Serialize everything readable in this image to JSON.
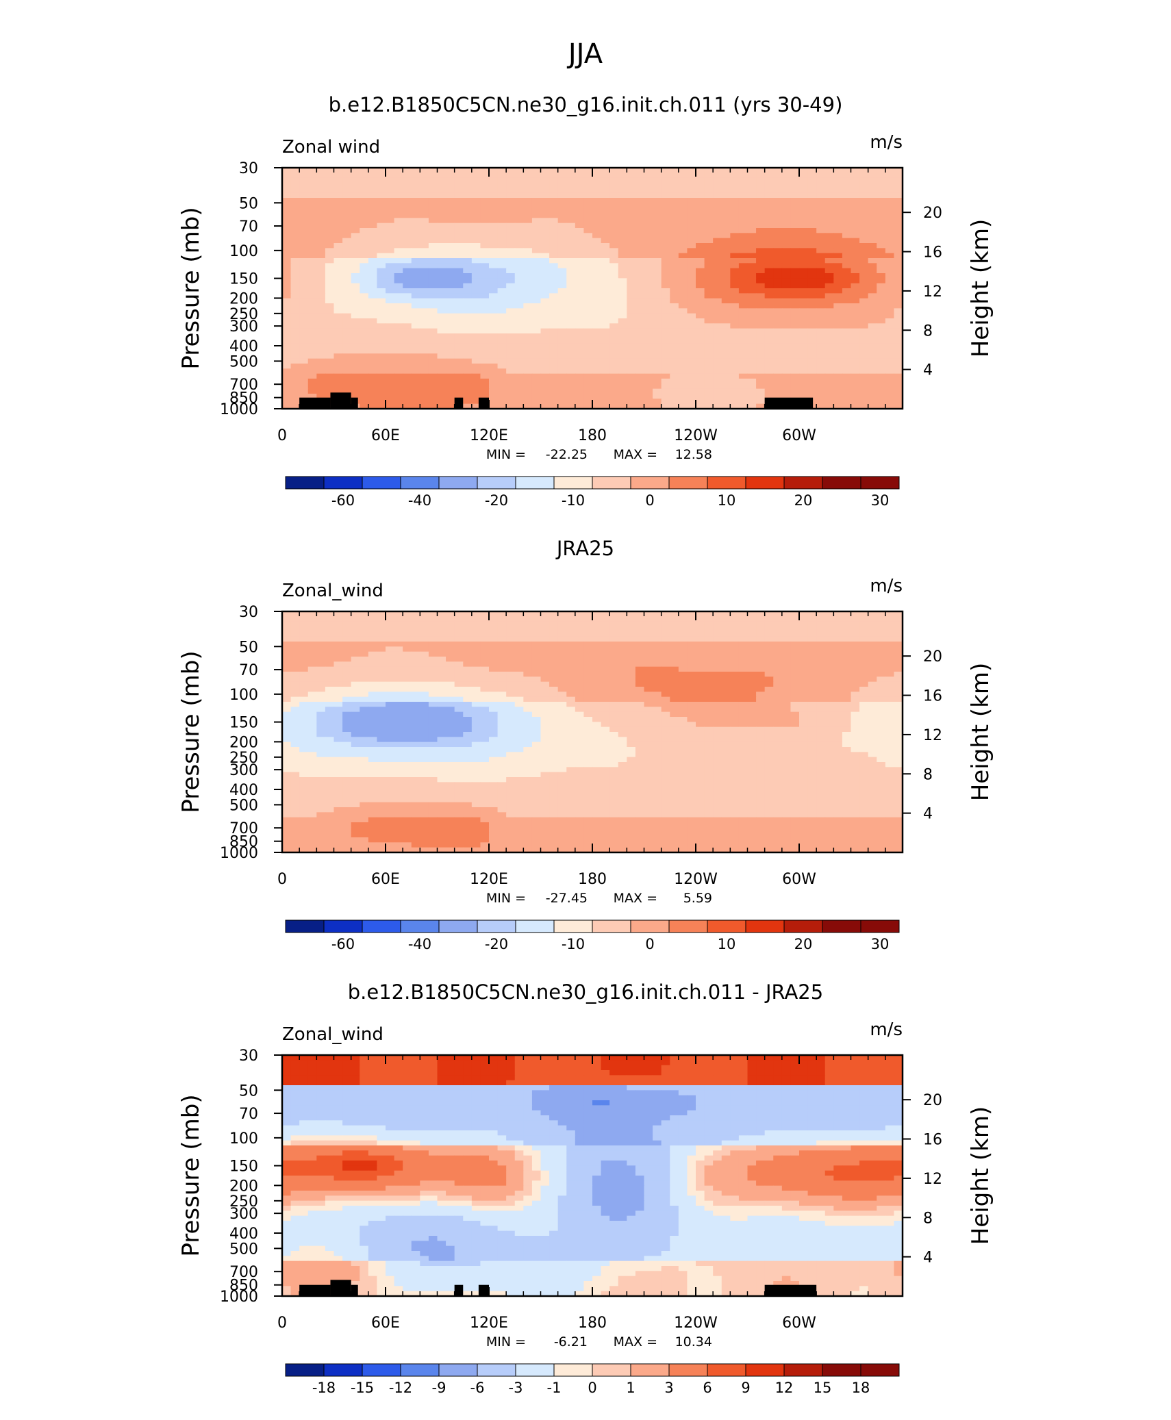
{
  "figure_title": "JJA",
  "colors": {
    "blues": [
      "#071f86",
      "#0d2fc4",
      "#2d5bea",
      "#5a85ec",
      "#8ea9f0",
      "#b7cdfa",
      "#d6e9fd"
    ],
    "reds": [
      "#feebd8",
      "#fdcbb5",
      "#fba98a",
      "#f68258",
      "#f05a2c",
      "#e2350f",
      "#b51d0a",
      "#870b08"
    ],
    "topography": "#000000"
  },
  "chart_data": [
    {
      "type": "heatmap",
      "title": "b.e12.B1850C5CN.ne30_g16.init.ch.011 (yrs 30-49)",
      "left_label": "Zonal wind",
      "right_label": "m/s",
      "ylabel": "Pressure (mb)",
      "y2label": "Height (km)",
      "x_ticks": [
        "0",
        "60E",
        "120E",
        "180",
        "120W",
        "60W"
      ],
      "y_ticks": [
        "30",
        "50",
        "70",
        "100",
        "150",
        "200",
        "250",
        "300",
        "400",
        "500",
        "700",
        "850",
        "1000"
      ],
      "y2_ticks": [
        "4",
        "8",
        "12",
        "16",
        "20"
      ],
      "min_label": "MIN =",
      "min_value": "-22.25",
      "max_label": "MAX =",
      "max_value": "12.58",
      "colorbar_labels": [
        "-60",
        "-40",
        "-20",
        "-10",
        "0",
        "10",
        "20",
        "30"
      ],
      "features": [
        {
          "lon": 90,
          "p": 150,
          "dlon": 65,
          "dz": 2.8,
          "amp": -13
        },
        {
          "lon": 80,
          "p": 150,
          "dlon": 22,
          "dz": 1.2,
          "amp": -10
        },
        {
          "lon": 290,
          "p": 150,
          "dlon": 55,
          "dz": 3.0,
          "amp": 14
        },
        {
          "lon": 300,
          "p": 150,
          "dlon": 25,
          "dz": 1.3,
          "amp": 9
        },
        {
          "lon": 30,
          "p": 150,
          "dlon": 35,
          "dz": 2.2,
          "amp": 3
        },
        {
          "lon": 180,
          "p": 200,
          "dlon": 80,
          "dz": 5.0,
          "amp": -3
        },
        {
          "lon": 70,
          "p": 700,
          "dlon": 45,
          "dz": 2.2,
          "amp": 8
        },
        {
          "lon": 250,
          "p": 850,
          "dlon": 20,
          "dz": 1.2,
          "amp": -4
        }
      ],
      "background": {
        "top": -2,
        "strato": 2,
        "mid": -2,
        "low": 1
      },
      "topography": [
        [
          10,
          28,
          850
        ],
        [
          28,
          40,
          790
        ],
        [
          40,
          44,
          850
        ],
        [
          100,
          105,
          850
        ],
        [
          114,
          120,
          850
        ],
        [
          280,
          308,
          850
        ]
      ],
      "palette": "main",
      "cb_type": "main"
    },
    {
      "type": "heatmap",
      "title": "JRA25",
      "left_label": "Zonal_wind",
      "right_label": "m/s",
      "ylabel": "Pressure (mb)",
      "y2label": "Height (km)",
      "x_ticks": [
        "0",
        "60E",
        "120E",
        "180",
        "120W",
        "60W"
      ],
      "y_ticks": [
        "30",
        "50",
        "70",
        "100",
        "150",
        "200",
        "250",
        "300",
        "400",
        "500",
        "700",
        "850",
        "1000"
      ],
      "y2_ticks": [
        "4",
        "8",
        "12",
        "16",
        "20"
      ],
      "min_label": "MIN =",
      "min_value": "-27.45",
      "max_label": "MAX =",
      "max_value": "5.59",
      "colorbar_labels": [
        "-60",
        "-40",
        "-20",
        "-10",
        "0",
        "10",
        "20",
        "30"
      ],
      "features": [
        {
          "lon": 75,
          "p": 150,
          "dlon": 70,
          "dz": 3.2,
          "amp": -16
        },
        {
          "lon": 70,
          "p": 150,
          "dlon": 25,
          "dz": 1.4,
          "amp": -12
        },
        {
          "lon": 230,
          "p": 100,
          "dlon": 80,
          "dz": 3.5,
          "amp": 6
        },
        {
          "lon": 295,
          "p": 150,
          "dlon": 18,
          "dz": 1.0,
          "amp": 3
        },
        {
          "lon": 80,
          "p": 700,
          "dlon": 45,
          "dz": 2.5,
          "amp": 6
        },
        {
          "lon": 180,
          "p": 200,
          "dlon": 100,
          "dz": 5.0,
          "amp": -2
        }
      ],
      "background": {
        "top": -3,
        "strato": 1.5,
        "mid": -2,
        "low": 1
      },
      "topography": [],
      "palette": "main",
      "cb_type": "main"
    },
    {
      "type": "heatmap",
      "title": "b.e12.B1850C5CN.ne30_g16.init.ch.011 - JRA25",
      "left_label": "Zonal_wind",
      "right_label": "m/s",
      "ylabel": "Pressure (mb)",
      "y2label": "Height (km)",
      "x_ticks": [
        "0",
        "60E",
        "120E",
        "180",
        "120W",
        "60W"
      ],
      "y_ticks": [
        "30",
        "50",
        "70",
        "100",
        "150",
        "200",
        "250",
        "300",
        "400",
        "500",
        "700",
        "850",
        "1000"
      ],
      "y2_ticks": [
        "4",
        "8",
        "12",
        "16",
        "20"
      ],
      "min_label": "MIN =",
      "min_value": "-6.21",
      "max_label": "MAX =",
      "max_value": "10.34",
      "colorbar_labels": [
        "-18",
        "-15",
        "-12",
        "-9",
        "-6",
        "-3",
        "-1",
        "0",
        "1",
        "3",
        "6",
        "9",
        "12",
        "15",
        "18"
      ],
      "features": [
        {
          "lon": 45,
          "p": 150,
          "dlon": 45,
          "dz": 2.3,
          "amp": 7
        },
        {
          "lon": 45,
          "p": 150,
          "dlon": 15,
          "dz": 0.9,
          "amp": 4
        },
        {
          "lon": 310,
          "p": 170,
          "dlon": 50,
          "dz": 2.5,
          "amp": 7
        },
        {
          "lon": 120,
          "p": 180,
          "dlon": 20,
          "dz": 2.5,
          "amp": 5
        },
        {
          "lon": 190,
          "p": 60,
          "dlon": 30,
          "dz": 1.2,
          "amp": -4
        },
        {
          "lon": 195,
          "p": 200,
          "dlon": 25,
          "dz": 4.5,
          "amp": -5
        },
        {
          "lon": 80,
          "p": 450,
          "dlon": 30,
          "dz": 2.5,
          "amp": -4
        },
        {
          "lon": 130,
          "p": 700,
          "dlon": 35,
          "dz": 2.0,
          "amp": -3
        },
        {
          "lon": 30,
          "p": 600,
          "dlon": 25,
          "dz": 2.0,
          "amp": 2
        }
      ],
      "background": {
        "top": 9,
        "strato": -4.5,
        "mid": -2,
        "low": 0.5
      },
      "topography": [
        [
          10,
          28,
          850
        ],
        [
          28,
          40,
          790
        ],
        [
          40,
          44,
          850
        ],
        [
          100,
          105,
          850
        ],
        [
          114,
          120,
          850
        ],
        [
          280,
          310,
          850
        ]
      ],
      "palette": "diff",
      "cb_type": "diff"
    }
  ]
}
